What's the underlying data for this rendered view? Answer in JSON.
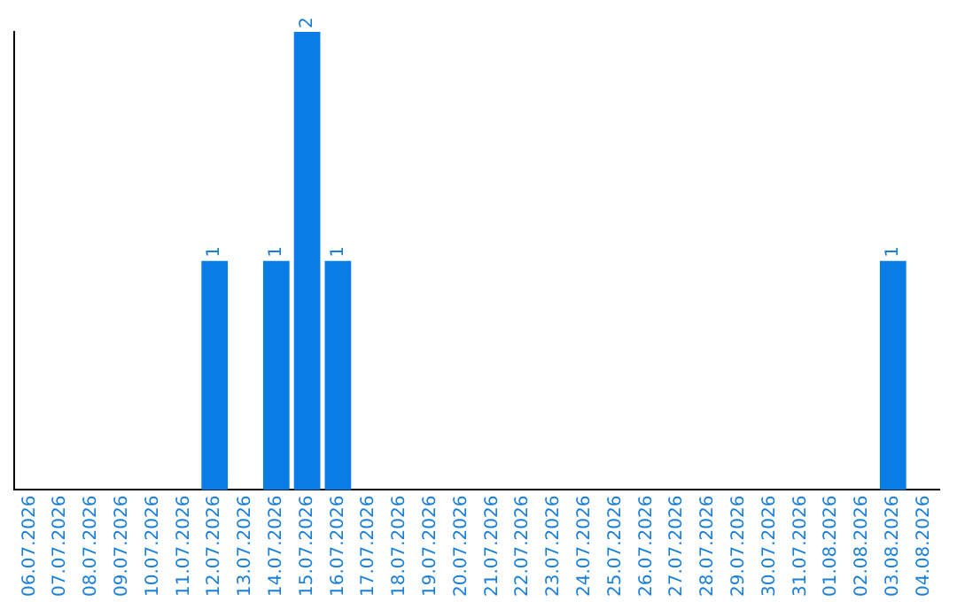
{
  "chart_data": {
    "type": "bar",
    "categories": [
      "06.07.2026",
      "07.07.2026",
      "08.07.2026",
      "09.07.2026",
      "10.07.2026",
      "11.07.2026",
      "12.07.2026",
      "13.07.2026",
      "14.07.2026",
      "15.07.2026",
      "16.07.2026",
      "17.07.2026",
      "18.07.2026",
      "19.07.2026",
      "20.07.2026",
      "21.07.2026",
      "22.07.2026",
      "23.07.2026",
      "24.07.2026",
      "25.07.2026",
      "26.07.2026",
      "27.07.2026",
      "28.07.2026",
      "29.07.2026",
      "30.07.2026",
      "31.07.2026",
      "01.08.2026",
      "02.08.2026",
      "03.08.2026",
      "04.08.2026"
    ],
    "values": [
      0,
      0,
      0,
      0,
      0,
      0,
      1,
      0,
      1,
      2,
      1,
      0,
      0,
      0,
      0,
      0,
      0,
      0,
      0,
      0,
      0,
      0,
      0,
      0,
      0,
      0,
      0,
      0,
      1,
      0
    ],
    "value_labels": [
      null,
      null,
      null,
      null,
      null,
      null,
      "1",
      null,
      "1",
      "2",
      "1",
      null,
      null,
      null,
      null,
      null,
      null,
      null,
      null,
      null,
      null,
      null,
      null,
      null,
      null,
      null,
      null,
      null,
      "1",
      null
    ],
    "color": "#0a7ce6",
    "grid": false,
    "legend": false,
    "tick_labels": "x"
  }
}
